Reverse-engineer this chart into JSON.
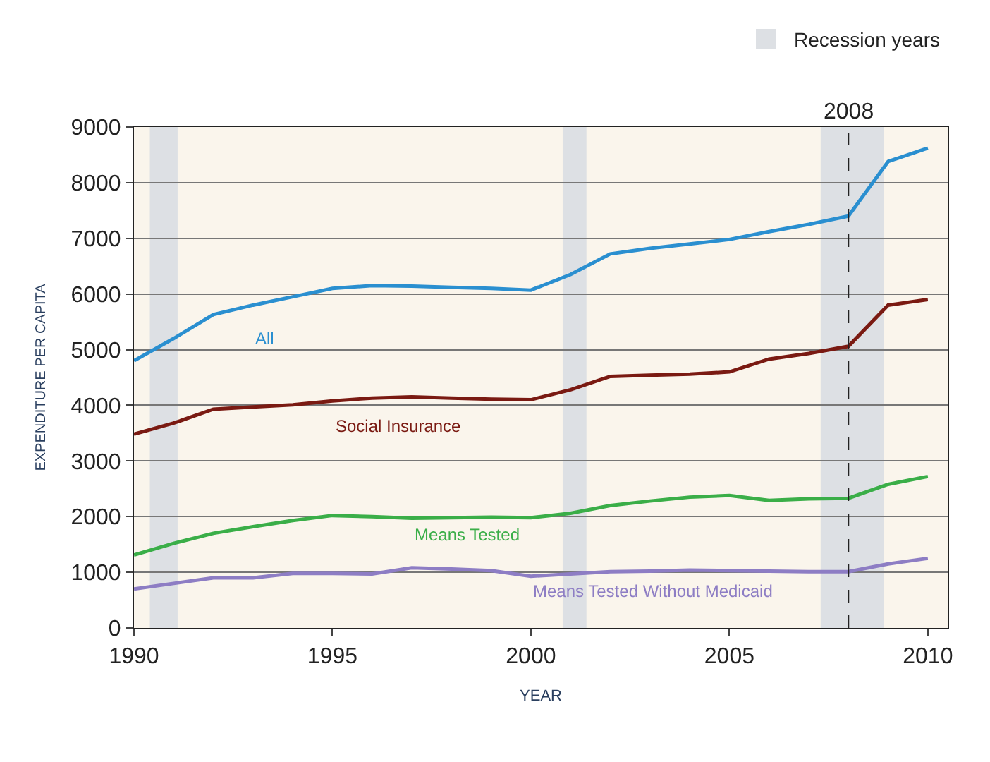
{
  "chart_data": {
    "type": "line",
    "xlabel": "YEAR",
    "ylabel": "EXPENDITURE PER CAPITA",
    "x": [
      1990,
      1991,
      1992,
      1993,
      1994,
      1995,
      1996,
      1997,
      1998,
      1999,
      2000,
      2001,
      2002,
      2003,
      2004,
      2005,
      2006,
      2007,
      2008,
      2009,
      2010
    ],
    "series": [
      {
        "name": "All",
        "color": "#2a8fd0",
        "values": [
          4800,
          5200,
          5630,
          5800,
          5950,
          6100,
          6150,
          6140,
          6120,
          6100,
          6070,
          6350,
          6720,
          6820,
          6900,
          6980,
          7120,
          7250,
          7400,
          8380,
          8620
        ]
      },
      {
        "name": "Social Insurance",
        "color": "#7a1a12",
        "values": [
          3480,
          3680,
          3930,
          3970,
          4010,
          4080,
          4130,
          4150,
          4130,
          4110,
          4100,
          4280,
          4520,
          4540,
          4560,
          4600,
          4830,
          4930,
          5060,
          5800,
          5900
        ]
      },
      {
        "name": "Means Tested",
        "color": "#3aae48",
        "values": [
          1310,
          1520,
          1700,
          1820,
          1930,
          2020,
          2000,
          1970,
          1980,
          1990,
          1980,
          2060,
          2200,
          2280,
          2350,
          2380,
          2290,
          2320,
          2330,
          2580,
          2720
        ]
      },
      {
        "name": "Means Tested Without Medicaid",
        "color": "#8d7dc4",
        "values": [
          700,
          800,
          900,
          900,
          980,
          980,
          970,
          1080,
          1060,
          1030,
          930,
          970,
          1010,
          1020,
          1040,
          1030,
          1020,
          1010,
          1010,
          1150,
          1250
        ]
      }
    ],
    "xlim": [
      1990,
      2010.5
    ],
    "xticks": [
      1990,
      1995,
      2000,
      2005,
      2010
    ],
    "ylim": [
      0,
      9000
    ],
    "yticks": [
      0,
      1000,
      2000,
      3000,
      4000,
      5000,
      6000,
      7000,
      8000,
      9000
    ],
    "bands": [
      {
        "axis": "x",
        "from": 1990.4,
        "to": 1991.1,
        "label": "Recession years",
        "color": "#dde0e4"
      },
      {
        "axis": "x",
        "from": 2000.8,
        "to": 2001.4,
        "color": "#dde0e4"
      },
      {
        "axis": "x",
        "from": 2007.3,
        "to": 2008.9,
        "color": "#dde0e4"
      }
    ],
    "ref_lines": [
      {
        "axis": "x",
        "value": 2008,
        "label": "2008",
        "color": "#222222",
        "line_style": "dashed"
      }
    ],
    "grid": "y",
    "legend": "top right",
    "marker": "none",
    "line_style": "solid"
  }
}
